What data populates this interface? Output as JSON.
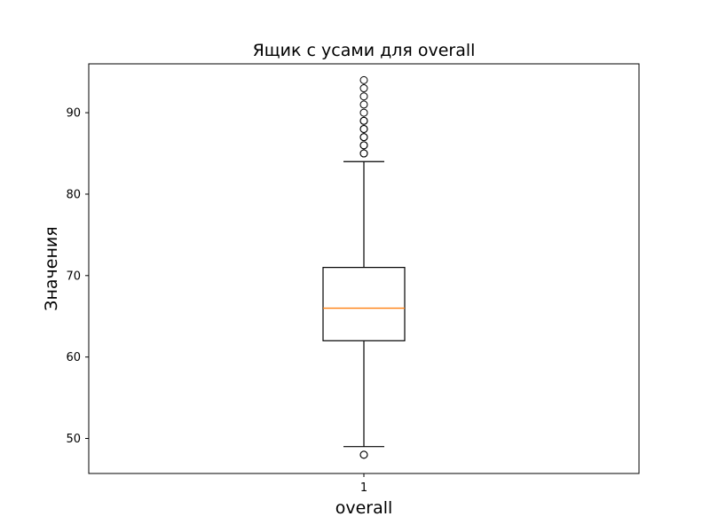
{
  "chart_data": {
    "type": "box",
    "title": "Ящик с усами для overall",
    "xlabel": "overall",
    "ylabel": "Значения",
    "ylim": [
      45.7,
      96.0
    ],
    "yticks": [
      50,
      60,
      70,
      80,
      90
    ],
    "categories": [
      "1"
    ],
    "box": {
      "q1": 62,
      "median": 66,
      "q3": 71,
      "whisker_low": 49,
      "whisker_high": 84
    },
    "outliers": [
      48,
      48,
      85,
      85,
      86,
      86,
      87,
      87,
      88,
      88,
      89,
      89,
      90,
      91,
      92,
      93,
      94
    ],
    "colors": {
      "box": "#000000",
      "median": "#ff7f0e",
      "outlier": "#000000"
    },
    "grid": false
  }
}
